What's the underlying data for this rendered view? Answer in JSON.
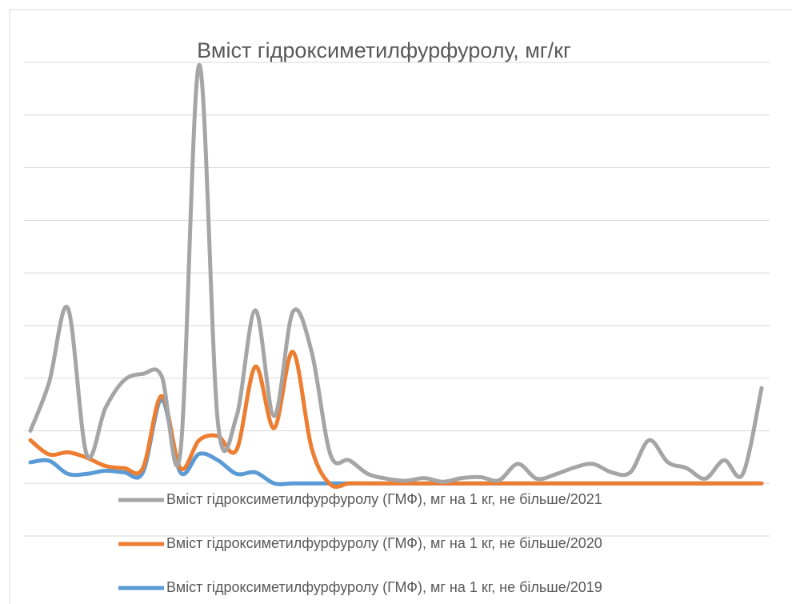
{
  "chart_data": {
    "type": "line",
    "title": "Вміст гідроксиметилфурфуролу, мг/кг",
    "ylim": [
      -1,
      8
    ],
    "yticks": [
      -1,
      0,
      1,
      2,
      3,
      4,
      5,
      6,
      7,
      8
    ],
    "grid": true,
    "legend": "bottom",
    "series": [
      {
        "name": "Вміст гідроксиметилфурфуролу (ГМФ), мг на 1 кг, не більше/2021",
        "color": "#a5a5a5",
        "values": [
          1.0,
          1.92,
          3.33,
          0.55,
          1.43,
          1.96,
          2.08,
          2.04,
          0.59,
          7.95,
          1.16,
          1.28,
          3.29,
          1.28,
          3.26,
          2.5,
          0.55,
          0.44,
          0.18,
          0.09,
          0.05,
          0.1,
          0.03,
          0.1,
          0.12,
          0.06,
          0.37,
          0.09,
          0.17,
          0.3,
          0.37,
          0.21,
          0.21,
          0.82,
          0.4,
          0.29,
          0.09,
          0.44,
          0.18,
          1.81
        ]
      },
      {
        "name": "Вміст гідроксиметилфурфуролу (ГМФ), мг на 1 кг, не більше/2020",
        "color": "#ed7d31",
        "values": [
          0.82,
          0.55,
          0.59,
          0.49,
          0.33,
          0.29,
          0.29,
          1.66,
          0.29,
          0.82,
          0.9,
          0.64,
          2.22,
          1.05,
          2.5,
          0.67,
          -0.02,
          0,
          0,
          0,
          0,
          0,
          0,
          0,
          0,
          0,
          0,
          0,
          0,
          0,
          0,
          0,
          0,
          0,
          0,
          0,
          0,
          0,
          0,
          0
        ]
      },
      {
        "name": "Вміст гідроксиметилфурфуролу (ГМФ), мг на 1 кг, не більше/2019",
        "color": "#5b9bd5",
        "values": [
          0.4,
          0.43,
          0.18,
          0.18,
          0.24,
          0.21,
          0.21,
          1.58,
          0.21,
          0.56,
          0.44,
          0.18,
          0.21,
          0,
          0,
          0,
          0,
          0,
          0,
          0,
          0,
          0,
          0,
          0,
          0,
          0,
          0,
          0,
          0,
          0,
          0,
          0,
          0,
          0,
          0,
          0,
          0,
          0,
          0,
          0
        ]
      }
    ]
  }
}
